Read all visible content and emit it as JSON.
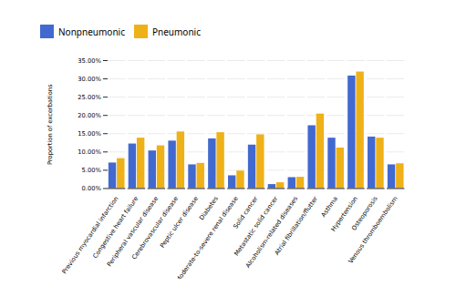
{
  "chart_data": {
    "type": "bar",
    "categories": [
      "Previous myocardial infarction",
      "Congestive heart failure",
      "Peripheral vascular disease",
      "Cerebrovascular disease",
      "Peptic ulcer disease",
      "Diabetes",
      "Moderate-to-severe renal disease",
      "Solid cancer",
      "Metastatic solid cancer",
      "Alcoholism-related diseases",
      "Atrial fibrillation/flutter",
      "Asthma",
      "Hypertension",
      "Osteoporosis",
      "Venous thromboembolism"
    ],
    "series": [
      {
        "name": "Nonpneumonic",
        "values": [
          0.07,
          0.122,
          0.103,
          0.13,
          0.065,
          0.136,
          0.035,
          0.119,
          0.011,
          0.03,
          0.172,
          0.138,
          0.308,
          0.141,
          0.065
        ]
      },
      {
        "name": "Pneumonic",
        "values": [
          0.082,
          0.138,
          0.117,
          0.155,
          0.069,
          0.153,
          0.048,
          0.147,
          0.016,
          0.031,
          0.204,
          0.111,
          0.319,
          0.138,
          0.068
        ]
      }
    ],
    "ylabel": "Proportion of excerbations",
    "ylim": [
      0.0,
      0.35
    ],
    "yticks": [
      {
        "value": 0.0,
        "label": "0.00%"
      },
      {
        "value": 0.05,
        "label": "5.00%"
      },
      {
        "value": 0.1,
        "label": "10.00%"
      },
      {
        "value": 0.15,
        "label": "15.00%"
      },
      {
        "value": 0.2,
        "label": "20.00%"
      },
      {
        "value": 0.25,
        "label": "25.00%"
      },
      {
        "value": 0.3,
        "label": "30.00%"
      },
      {
        "value": 0.35,
        "label": "35.00%"
      }
    ],
    "grid": true,
    "legend": "upper left"
  }
}
